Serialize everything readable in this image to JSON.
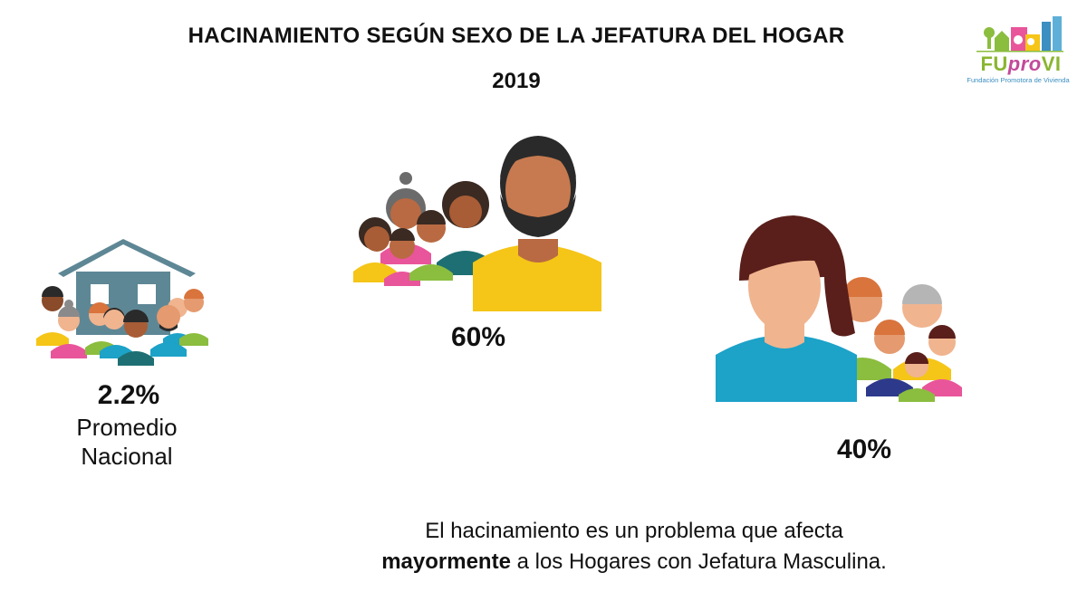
{
  "title": "HACINAMIENTO SEGÚN SEXO DE LA JEFATURA DEL HOGAR",
  "year": "2019",
  "logo": {
    "name_part1": "FU",
    "name_part2": "pro",
    "name_part3": "VI",
    "subtitle": "Fundación Promotora de Vivienda"
  },
  "national": {
    "value": "2.2%",
    "label_line1": "Promedio",
    "label_line2": "Nacional"
  },
  "male_headed": {
    "value": "60%"
  },
  "female_headed": {
    "value": "40%"
  },
  "message": {
    "line1": "El hacinamiento es un problema que afecta",
    "bold": "mayormente",
    "line2_rest": " a los Hogares con Jefatura Masculina."
  },
  "colors": {
    "yellow": "#f5c518",
    "pink": "#e9559a",
    "green": "#8bbd3f",
    "teal": "#1e6f73",
    "blue": "#1da2c8",
    "navy": "#2d3a8c",
    "skin_dark": "#b96a42",
    "skin_light": "#f0b48f",
    "hair_dark": "#2a2a2a",
    "hair_brown": "#5a1f1a",
    "house": "#5e8795"
  }
}
